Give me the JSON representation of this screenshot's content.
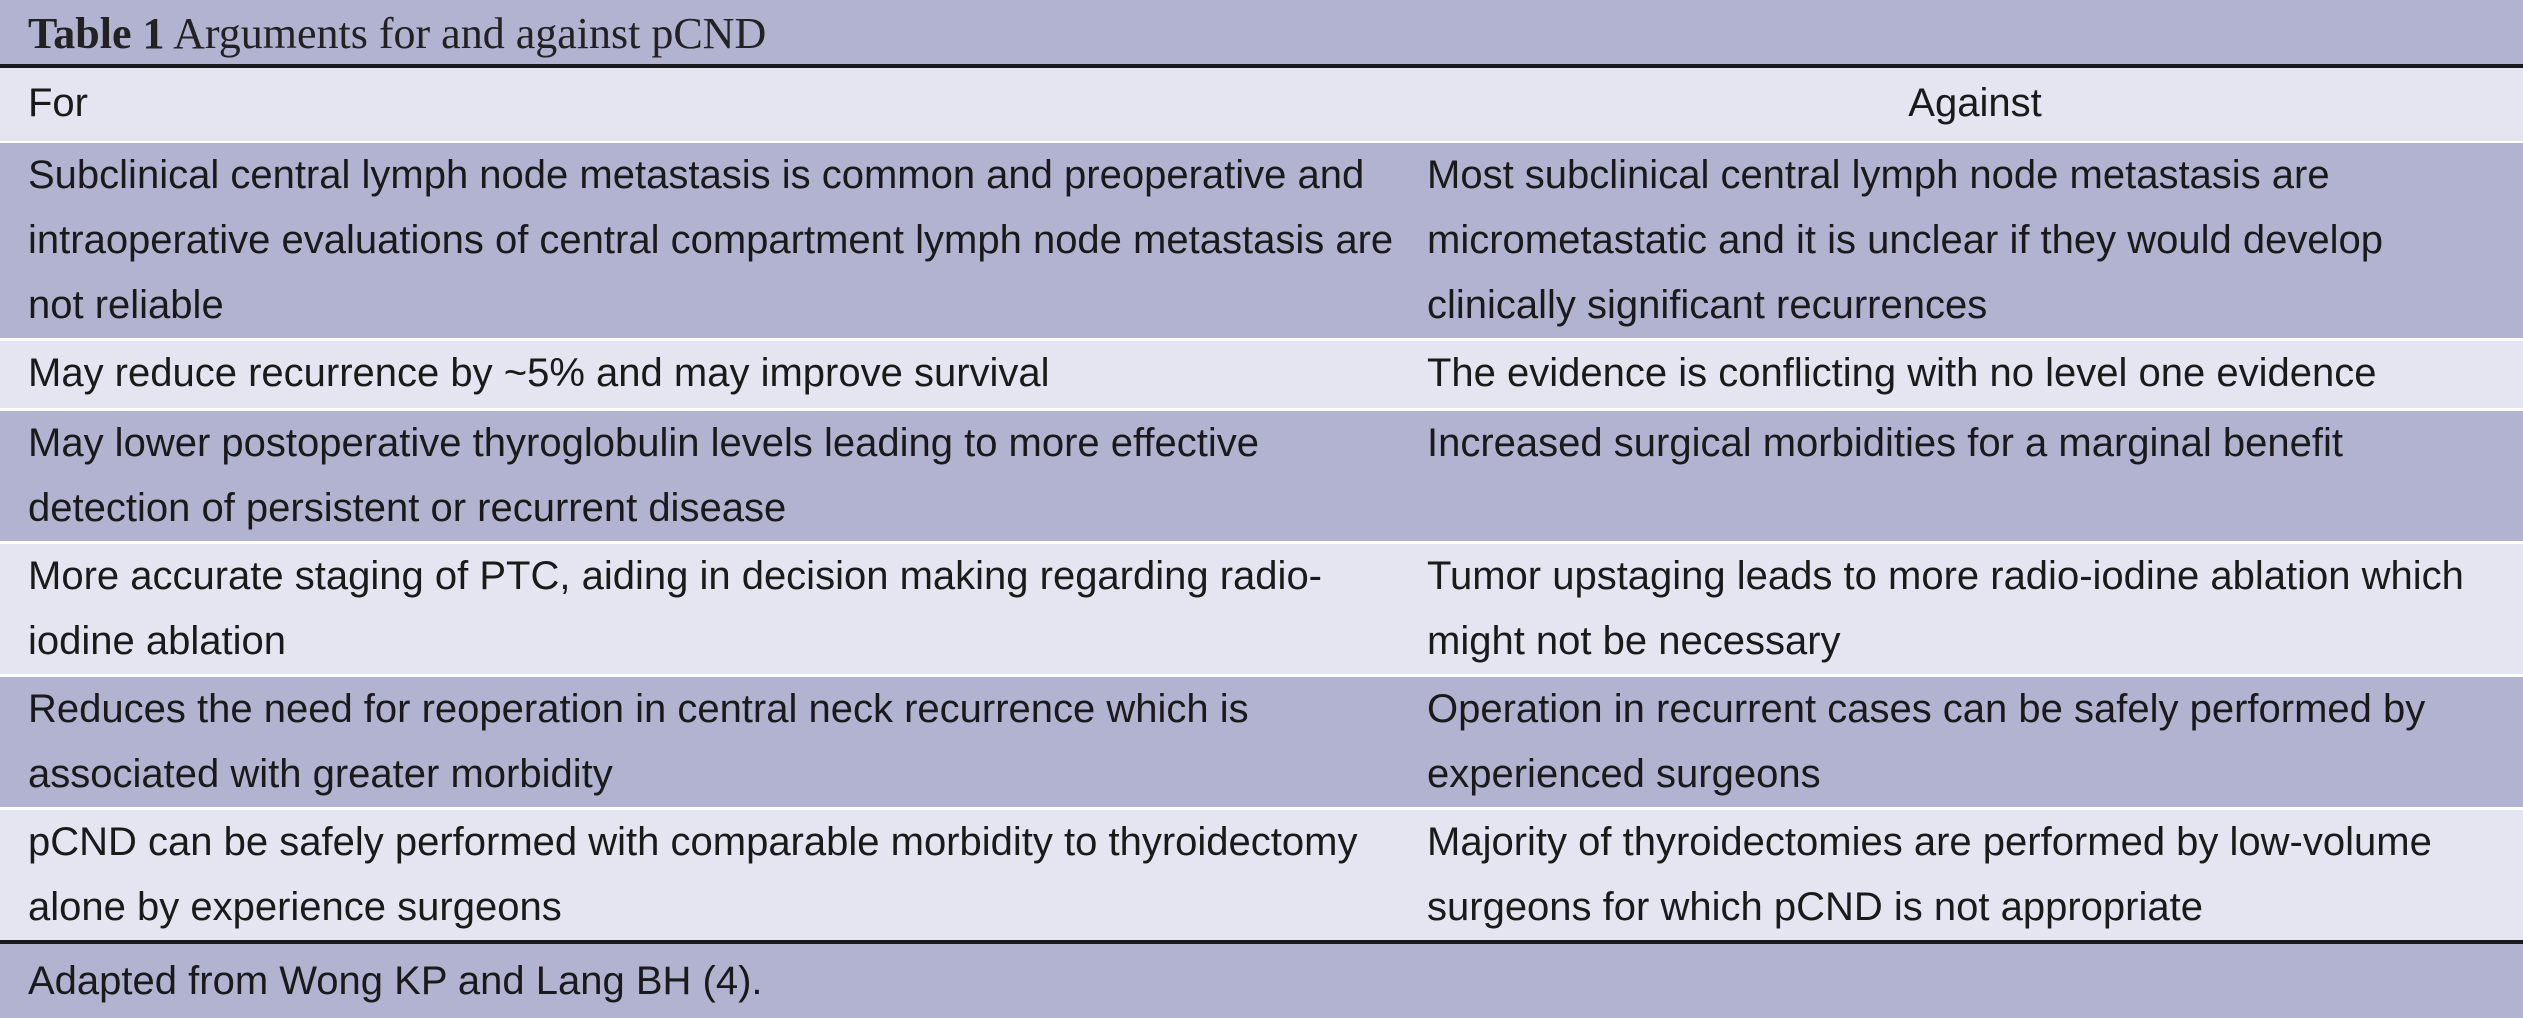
{
  "caption": {
    "label": "Table 1",
    "title": "Arguments for and against pCND"
  },
  "columns": {
    "for": "For",
    "against": "Against"
  },
  "rows": [
    {
      "for": "Subclinical central lymph node metastasis is common and preoperative and intraoperative evaluations of central compartment lymph node metastasis are not reliable",
      "against": "Most subclinical central lymph node metastasis are micrometastatic and it is unclear if they would develop clinically significant recurrences"
    },
    {
      "for": "May reduce recurrence by ~5% and may improve survival",
      "against": "The evidence is conflicting with no level one evidence"
    },
    {
      "for": "May lower postoperative thyroglobulin levels leading to more effective detection of persistent or recurrent disease",
      "against": "Increased surgical morbidities for a marginal benefit"
    },
    {
      "for": "More accurate staging of PTC, aiding in decision making regarding radio-iodine ablation",
      "against": "Tumor upstaging leads to more radio-iodine ablation which might not be necessary"
    },
    {
      "for": "Reduces the need for reoperation in central neck recurrence which is associated with greater morbidity",
      "against": "Operation in recurrent cases can be safely performed by experienced surgeons"
    },
    {
      "for": "pCND can be safely performed with comparable morbidity to thyroidectomy alone by experience surgeons",
      "against": "Majority of thyroidectomies are performed by low-volume surgeons for which pCND is not appropriate"
    }
  ],
  "footnote": "Adapted from Wong KP and Lang BH (4).",
  "colors": {
    "dark_row": "#b1b3d1",
    "light_row": "#e4e5f0",
    "rule": "#1a1a1a"
  }
}
